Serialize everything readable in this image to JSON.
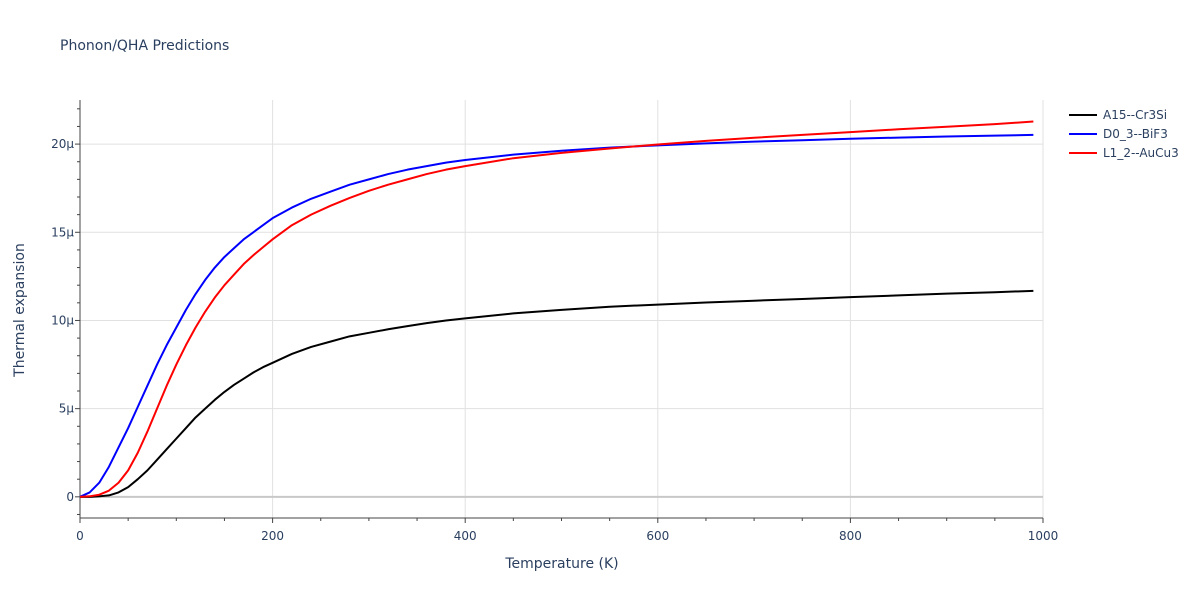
{
  "chart_data": {
    "type": "line",
    "title": "Phonon/QHA Predictions",
    "xlabel": "Temperature (K)",
    "ylabel": "Thermal expansion",
    "xlim": [
      0,
      1000
    ],
    "ylim": [
      -1.2e-06,
      2.25e-05
    ],
    "x_ticks": [
      0,
      200,
      400,
      600,
      800,
      1000
    ],
    "x_tick_labels": [
      "0",
      "200",
      "400",
      "600",
      "800",
      "1000"
    ],
    "y_ticks": [
      0,
      5e-06,
      1e-05,
      1.5e-05,
      2e-05
    ],
    "y_tick_labels": [
      "0",
      "5μ",
      "10μ",
      "15μ",
      "20μ"
    ],
    "grid": true,
    "legend_position": "top-right",
    "x": [
      0,
      10,
      20,
      30,
      40,
      50,
      60,
      70,
      80,
      90,
      100,
      110,
      120,
      130,
      140,
      150,
      160,
      170,
      180,
      190,
      200,
      220,
      240,
      260,
      280,
      300,
      320,
      340,
      360,
      380,
      400,
      450,
      500,
      550,
      600,
      650,
      700,
      750,
      800,
      850,
      900,
      950,
      990
    ],
    "series": [
      {
        "name": "A15--Cr3Si",
        "color": "#000000",
        "values": [
          0,
          0,
          3e-08,
          8e-08,
          2.5e-07,
          5.5e-07,
          1e-06,
          1.5e-06,
          2.1e-06,
          2.7e-06,
          3.3e-06,
          3.9e-06,
          4.5e-06,
          5e-06,
          5.5e-06,
          5.95e-06,
          6.35e-06,
          6.7e-06,
          7.05e-06,
          7.35e-06,
          7.6e-06,
          8.1e-06,
          8.5e-06,
          8.8e-06,
          9.1e-06,
          9.3e-06,
          9.5e-06,
          9.68e-06,
          9.85e-06,
          1e-05,
          1.012e-05,
          1.04e-05,
          1.06e-05,
          1.078e-05,
          1.09e-05,
          1.102e-05,
          1.112e-05,
          1.122e-05,
          1.132e-05,
          1.142e-05,
          1.152e-05,
          1.16e-05,
          1.168e-05
        ]
      },
      {
        "name": "D0_3--BiF3",
        "color": "#0000ff",
        "values": [
          0,
          2.5e-07,
          8e-07,
          1.7e-06,
          2.8e-06,
          3.9e-06,
          5.1e-06,
          6.3e-06,
          7.5e-06,
          8.6e-06,
          9.6e-06,
          1.06e-05,
          1.15e-05,
          1.23e-05,
          1.3e-05,
          1.36e-05,
          1.41e-05,
          1.46e-05,
          1.5e-05,
          1.54e-05,
          1.58e-05,
          1.64e-05,
          1.69e-05,
          1.73e-05,
          1.77e-05,
          1.8e-05,
          1.83e-05,
          1.855e-05,
          1.875e-05,
          1.895e-05,
          1.91e-05,
          1.94e-05,
          1.962e-05,
          1.98e-05,
          1.993e-05,
          2.004e-05,
          2.014e-05,
          2.022e-05,
          2.03e-05,
          2.037e-05,
          2.043e-05,
          2.048e-05,
          2.052e-05
        ]
      },
      {
        "name": "L1_2--AuCu3",
        "color": "#ff0000",
        "values": [
          0,
          3e-08,
          1.2e-07,
          3.5e-07,
          8e-07,
          1.5e-06,
          2.5e-06,
          3.7e-06,
          5e-06,
          6.3e-06,
          7.5e-06,
          8.6e-06,
          9.6e-06,
          1.05e-05,
          1.13e-05,
          1.2e-05,
          1.26e-05,
          1.32e-05,
          1.37e-05,
          1.415e-05,
          1.46e-05,
          1.54e-05,
          1.6e-05,
          1.65e-05,
          1.695e-05,
          1.735e-05,
          1.77e-05,
          1.8e-05,
          1.83e-05,
          1.855e-05,
          1.875e-05,
          1.92e-05,
          1.95e-05,
          1.975e-05,
          1.998e-05,
          2.018e-05,
          2.036e-05,
          2.052e-05,
          2.068e-05,
          2.084e-05,
          2.098e-05,
          2.113e-05,
          2.128e-05
        ]
      }
    ]
  }
}
